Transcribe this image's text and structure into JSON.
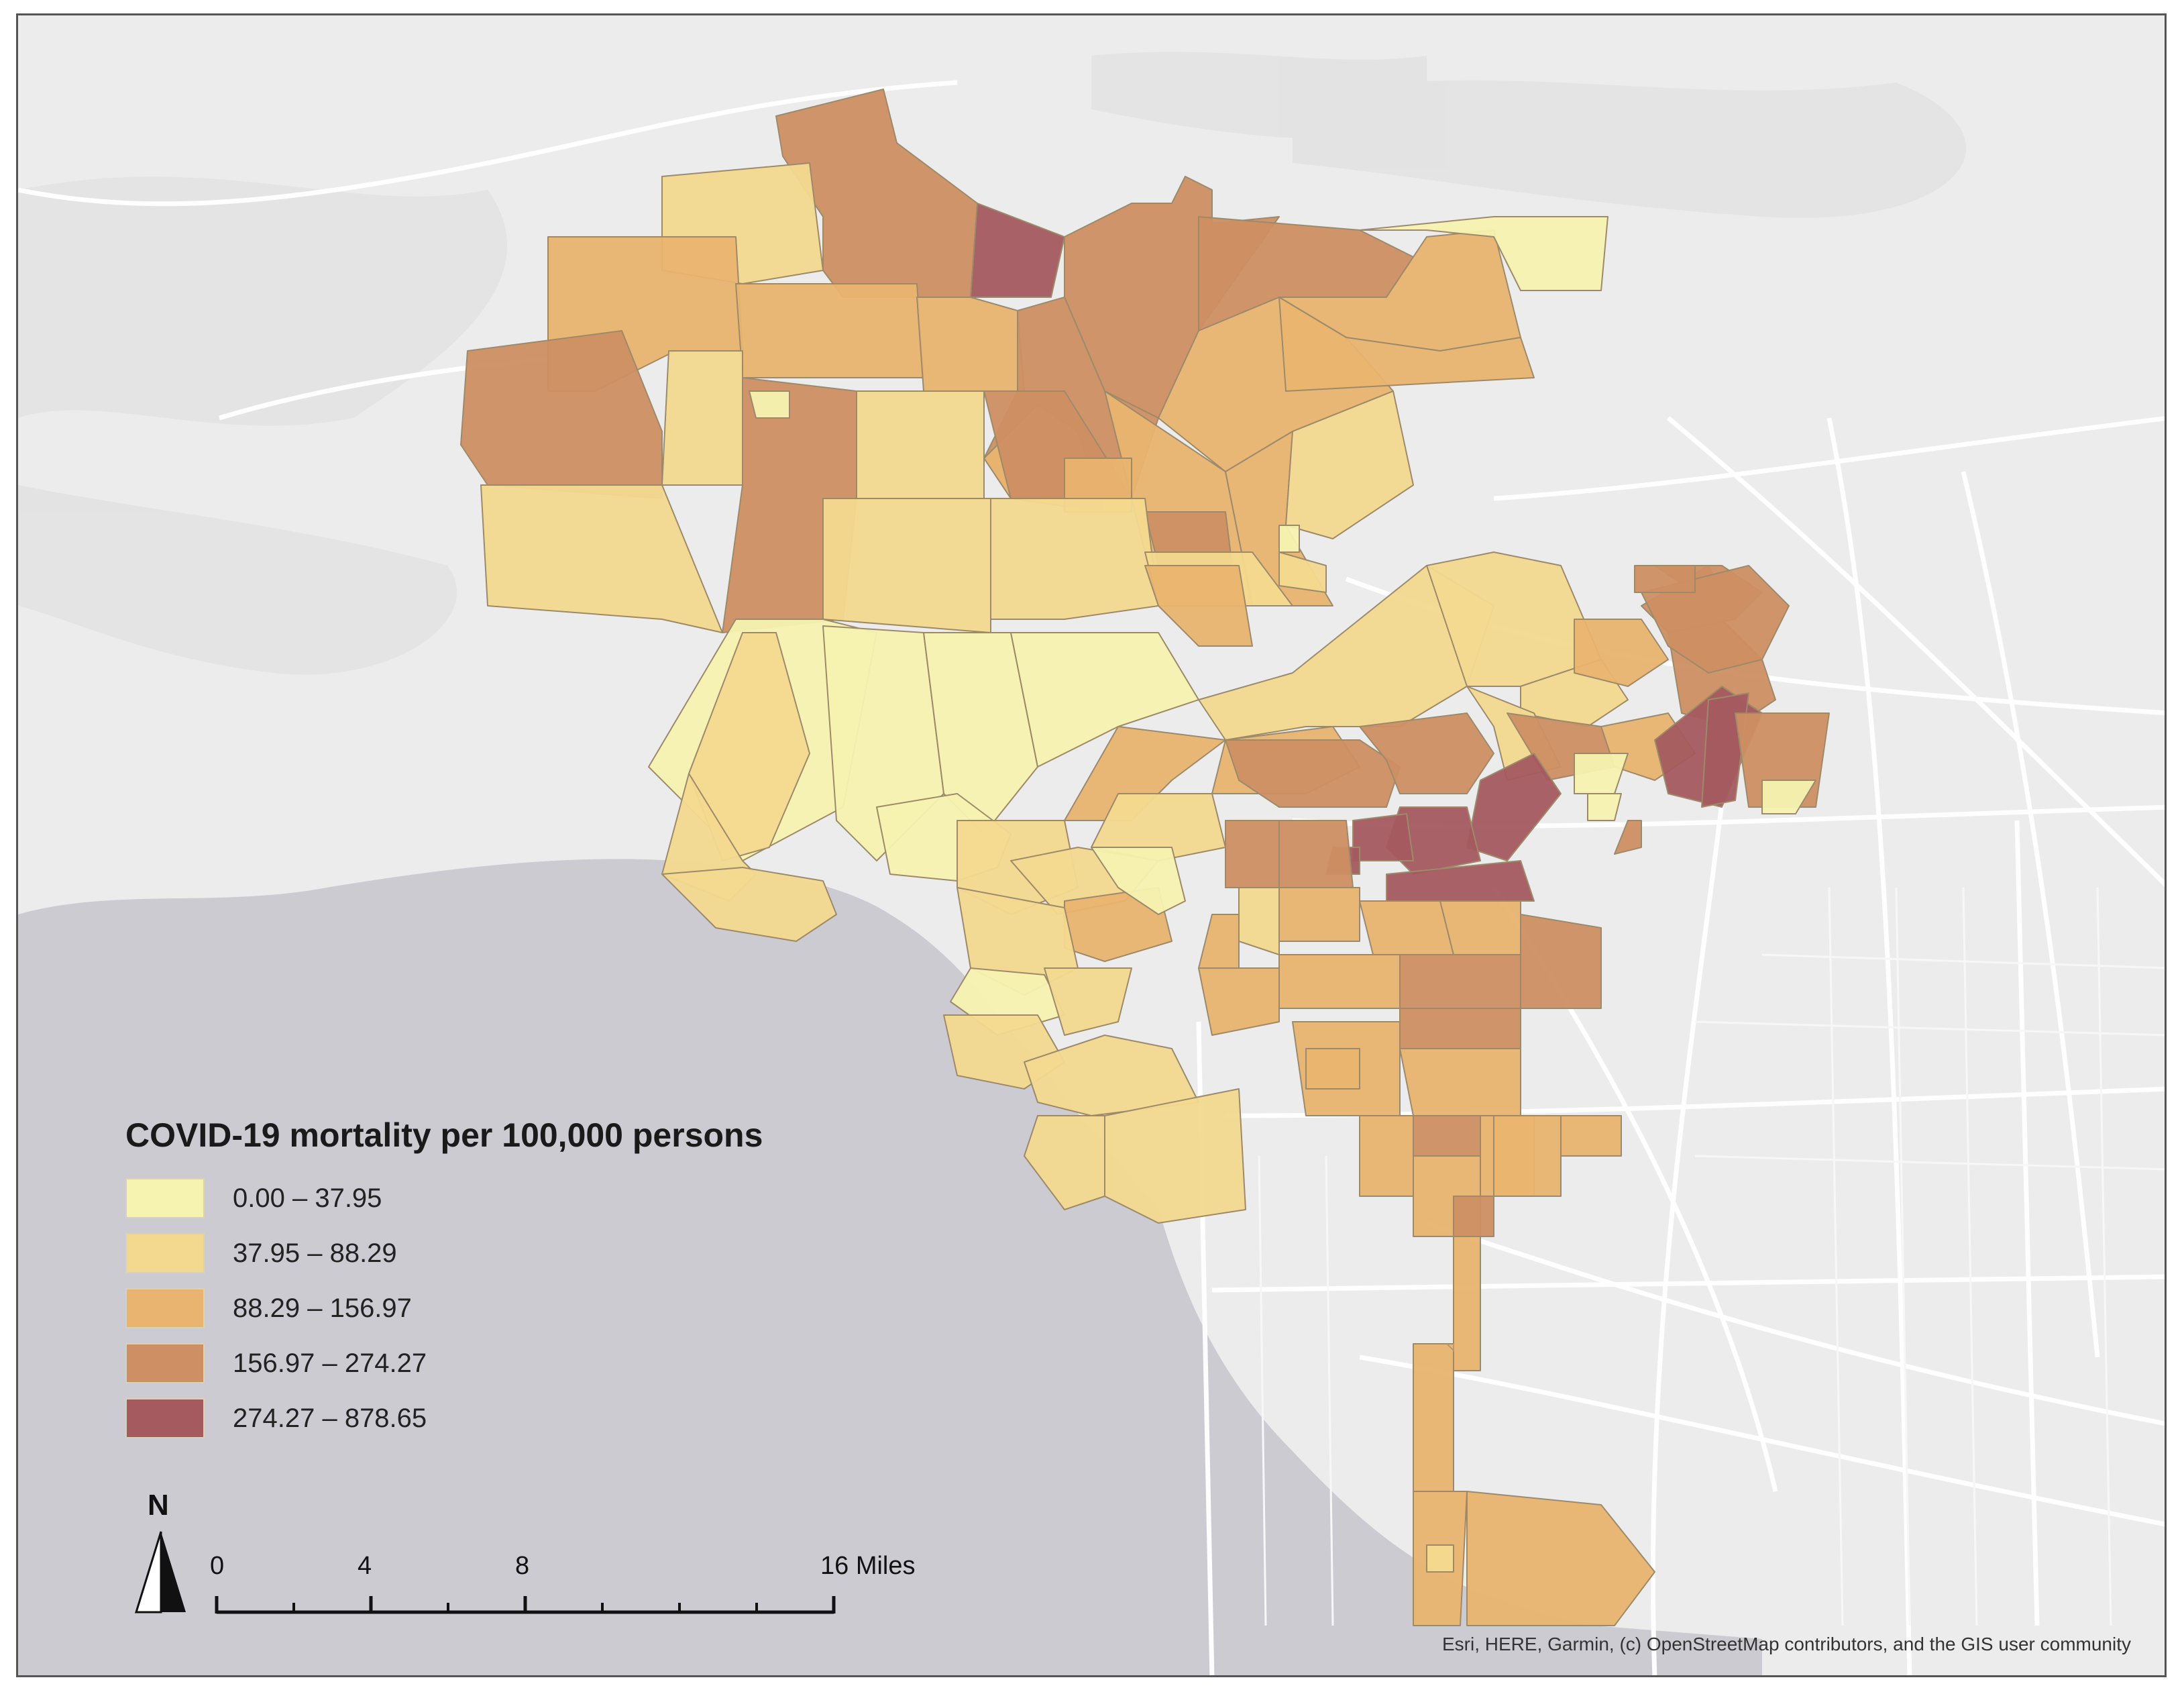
{
  "legend": {
    "title": "COVID-19 mortality per 100,000 persons",
    "classes": [
      {
        "label": "0.00 – 37.95",
        "color": "#f6f2b0"
      },
      {
        "label": "37.95 – 88.29",
        "color": "#f3d98f"
      },
      {
        "label": "88.29 – 156.97",
        "color": "#e9b46f"
      },
      {
        "label": "156.97 – 274.27",
        "color": "#cd8f63"
      },
      {
        "label": "274.27 – 878.65",
        "color": "#a45a5f"
      }
    ]
  },
  "north_arrow": {
    "label": "N"
  },
  "scale_bar": {
    "labels": [
      "0",
      "4",
      "8",
      "16 Miles"
    ]
  },
  "attribution": "Esri, HERE, Garmin, (c) OpenStreetMap contributors, and the GIS user community",
  "basemap": {
    "ocean_label": "",
    "land_color": "#ececec",
    "water_color": "#cdcbd2"
  }
}
